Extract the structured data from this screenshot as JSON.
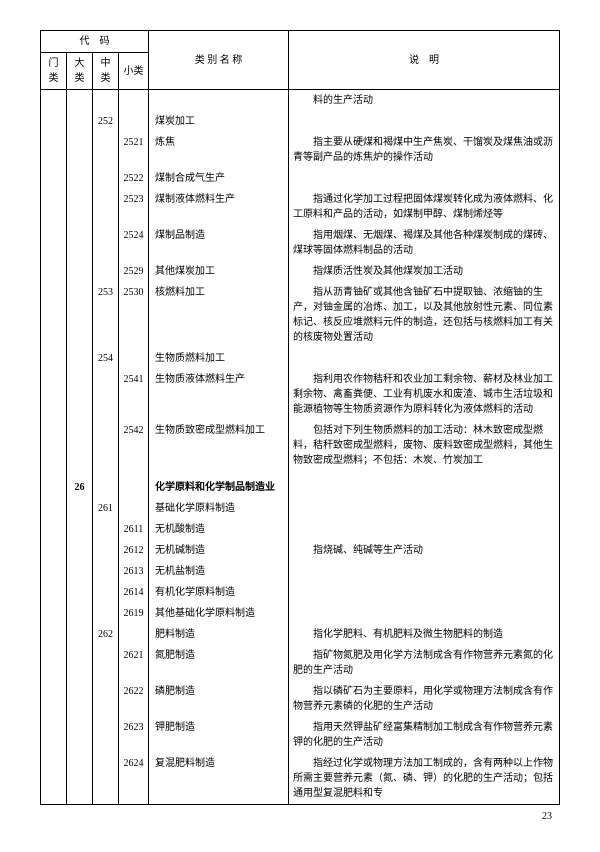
{
  "headers": {
    "code_group": "代　码",
    "men": "门类",
    "da": "大类",
    "zhong": "中类",
    "xiao": "小类",
    "name": "类 别 名 称",
    "desc": "说　明"
  },
  "rows": [
    {
      "men": "",
      "da": "",
      "zhong": "",
      "xiao": "",
      "name": "",
      "desc": "料的生产活动",
      "indent": 0
    },
    {
      "men": "",
      "da": "",
      "zhong": "252",
      "xiao": "",
      "name": "煤炭加工",
      "desc": "",
      "indent": 1
    },
    {
      "men": "",
      "da": "",
      "zhong": "",
      "xiao": "2521",
      "name": "炼焦",
      "desc": "指主要从硬煤和褐煤中生产焦炭、干馏炭及煤焦油或沥青等副产品的炼焦炉的操作活动",
      "indent": 2
    },
    {
      "men": "",
      "da": "",
      "zhong": "",
      "xiao": "2522",
      "name": "煤制合成气生产",
      "desc": "",
      "indent": 2
    },
    {
      "men": "",
      "da": "",
      "zhong": "",
      "xiao": "2523",
      "name": "煤制液体燃料生产",
      "desc": "指通过化学加工过程把固体煤炭转化成为液体燃料、化工原料和产品的活动，如煤制甲醇、煤制烯烃等",
      "indent": 2
    },
    {
      "men": "",
      "da": "",
      "zhong": "",
      "xiao": "2524",
      "name": "煤制品制造",
      "desc": "指用烟煤、无烟煤、褐煤及其他各种煤炭制成的煤砖、煤球等固体燃料制品的活动",
      "indent": 2
    },
    {
      "men": "",
      "da": "",
      "zhong": "",
      "xiao": "2529",
      "name": "其他煤炭加工",
      "desc": "指煤质活性炭及其他煤炭加工活动",
      "indent": 2
    },
    {
      "men": "",
      "da": "",
      "zhong": "253",
      "xiao": "2530",
      "name": "核燃料加工",
      "desc": "指从沥青铀矿或其他含铀矿石中提取铀、浓缩铀的生产，对铀金属的冶炼、加工，以及其他放射性元素、同位素标记、核反应堆燃料元件的制造，还包括与核燃料加工有关的核废物处置活动",
      "indent": 1
    },
    {
      "men": "",
      "da": "",
      "zhong": "254",
      "xiao": "",
      "name": "生物质燃料加工",
      "desc": "",
      "indent": 1
    },
    {
      "men": "",
      "da": "",
      "zhong": "",
      "xiao": "2541",
      "name": "生物质液体燃料生产",
      "desc": "指利用农作物秸秆和农业加工剩余物、薪材及林业加工剩余物、禽畜粪便、工业有机废水和废渣、城市生活垃圾和能源植物等生物质资源作为原料转化为液体燃料的活动",
      "indent": 2
    },
    {
      "men": "",
      "da": "",
      "zhong": "",
      "xiao": "2542",
      "name": "生物质致密成型燃料加工",
      "desc": "包括对下列生物质燃料的加工活动：林木致密成型燃料，秸秆致密成型燃料，废物、废料致密成型燃料，其他生物致密成型燃料；不包括：木炭、竹炭加工",
      "indent": 2
    },
    {
      "men": "",
      "da": "",
      "zhong": "",
      "xiao": "",
      "name": "",
      "desc": "",
      "indent": 0
    },
    {
      "men": "",
      "da": "26",
      "zhong": "",
      "xiao": "",
      "name": "化学原料和化学制品制造业",
      "desc": "",
      "bold": true,
      "indent": 0
    },
    {
      "men": "",
      "da": "",
      "zhong": "261",
      "xiao": "",
      "name": "基础化学原料制造",
      "desc": "",
      "indent": 1
    },
    {
      "men": "",
      "da": "",
      "zhong": "",
      "xiao": "2611",
      "name": "无机酸制造",
      "desc": "",
      "indent": 2
    },
    {
      "men": "",
      "da": "",
      "zhong": "",
      "xiao": "2612",
      "name": "无机碱制造",
      "desc": "指烧碱、纯碱等生产活动",
      "indent": 2
    },
    {
      "men": "",
      "da": "",
      "zhong": "",
      "xiao": "2613",
      "name": "无机盐制造",
      "desc": "",
      "indent": 2
    },
    {
      "men": "",
      "da": "",
      "zhong": "",
      "xiao": "2614",
      "name": "有机化学原料制造",
      "desc": "",
      "indent": 2
    },
    {
      "men": "",
      "da": "",
      "zhong": "",
      "xiao": "2619",
      "name": "其他基础化学原料制造",
      "desc": "",
      "indent": 2
    },
    {
      "men": "",
      "da": "",
      "zhong": "262",
      "xiao": "",
      "name": "肥料制造",
      "desc": "指化学肥料、有机肥料及微生物肥料的制造",
      "indent": 1
    },
    {
      "men": "",
      "da": "",
      "zhong": "",
      "xiao": "2621",
      "name": "氮肥制造",
      "desc": "指矿物氮肥及用化学方法制成含有作物营养元素氮的化肥的生产活动",
      "indent": 2
    },
    {
      "men": "",
      "da": "",
      "zhong": "",
      "xiao": "2622",
      "name": "磷肥制造",
      "desc": "指以磷矿石为主要原料，用化学或物理方法制成含有作物营养元素磷的化肥的生产活动",
      "indent": 2
    },
    {
      "men": "",
      "da": "",
      "zhong": "",
      "xiao": "2623",
      "name": "钾肥制造",
      "desc": "指用天然钾盐矿经富集精制加工制成含有作物营养元素钾的化肥的生产活动",
      "indent": 2
    },
    {
      "men": "",
      "da": "",
      "zhong": "",
      "xiao": "2624",
      "name": "复混肥料制造",
      "desc": "指经过化学或物理方法加工制成的，含有两种以上作物所需主要营养元素（氮、磷、钾）的化肥的生产活动；包括通用型复混肥料和专",
      "indent": 2
    }
  ],
  "page_number": "23"
}
